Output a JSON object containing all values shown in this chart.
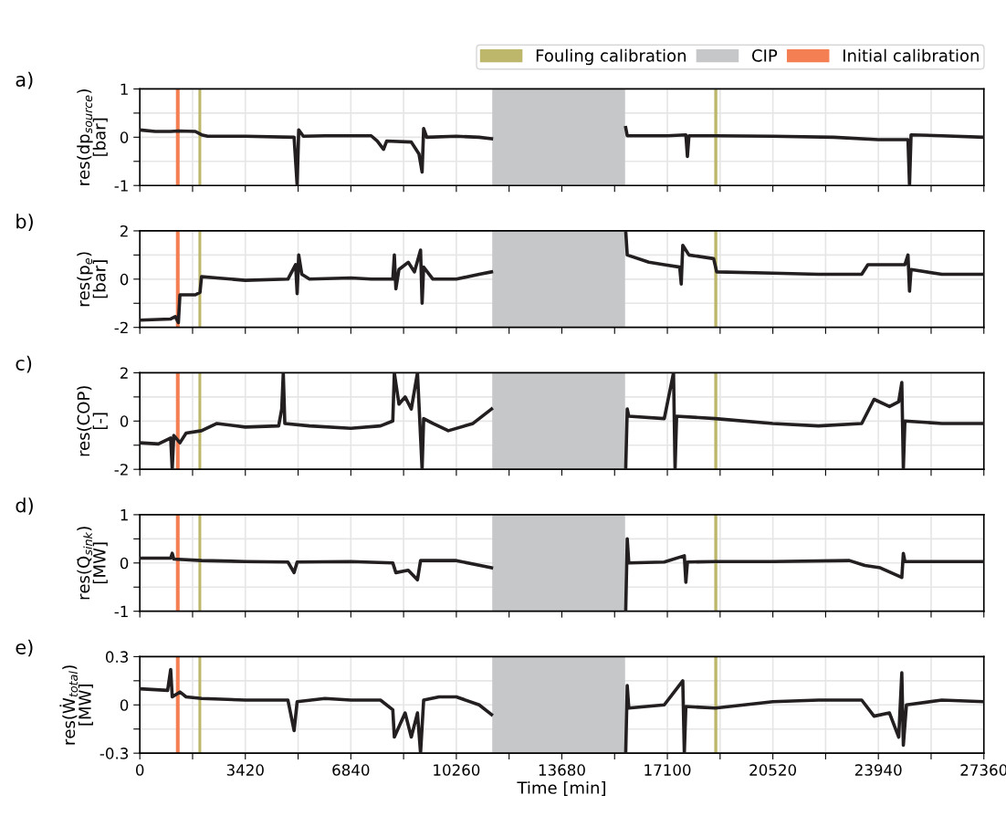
{
  "chart_data": [
    {
      "type": "line",
      "title": "a)",
      "ylabel": "res(dp$_{source}$)\n[bar]",
      "xlim": [
        0,
        27360
      ],
      "ylim": [
        -1,
        1
      ],
      "yticks": [
        -1,
        {
          "value": -0.5,
          "label": null
        },
        0,
        {
          "value": 0.5,
          "label": null
        },
        1
      ],
      "xticks": [
        0,
        {
          "value": 1710,
          "label": null
        },
        3420,
        {
          "value": 5130,
          "label": null
        },
        6840,
        {
          "value": 8550,
          "label": null
        },
        10260,
        {
          "value": 11970,
          "label": null
        },
        13680,
        {
          "value": 15390,
          "label": null
        },
        17100,
        {
          "value": 18810,
          "label": null
        },
        20520,
        {
          "value": 22230,
          "label": null
        },
        23940,
        {
          "value": 25650,
          "label": null
        },
        27360
      ],
      "tick_labels": "y",
      "grid": true,
      "legend": "top right",
      "bands": [
        {
          "axis": "x",
          "from": 1900,
          "to": 1990,
          "label": "Fouling calibration",
          "color": "#bdb76b"
        },
        {
          "axis": "x",
          "from": 11424,
          "to": 15730,
          "label": "CIP",
          "color": "#c6c7c9"
        },
        {
          "axis": "x",
          "from": 1170,
          "to": 1290,
          "label": "Initial calibration",
          "color": "#f47f52"
        },
        {
          "axis": "x",
          "from": 18620,
          "to": 18720,
          "color": "#bdb76b"
        }
      ],
      "series": [
        {
          "color": "#231f20",
          "x": [
            0,
            500,
            1000,
            1250,
            1800,
            2000,
            2200,
            3420,
            5000,
            5100,
            5150,
            5300,
            6000,
            7500,
            7700,
            7900,
            8000,
            8800,
            9050,
            9150,
            9200,
            9300,
            10260,
            11000,
            11400,
            13680,
            15750,
            15800,
            17100,
            17700,
            17750,
            17800,
            18660,
            20520,
            22500,
            23940,
            24900,
            24950,
            25000,
            26000,
            27360
          ],
          "values": [
            0.15,
            0.12,
            0.12,
            0.13,
            0.12,
            0.05,
            0.02,
            0.02,
            0.0,
            -1.0,
            0.15,
            0.02,
            0.03,
            0.03,
            -0.08,
            -0.25,
            -0.08,
            -0.1,
            -0.35,
            -0.72,
            0.18,
            0.0,
            0.02,
            0.0,
            -0.03,
            null,
            0.2,
            0.03,
            0.03,
            0.05,
            -0.4,
            0.03,
            0.03,
            0.02,
            0.0,
            -0.05,
            -0.05,
            -1.0,
            0.05,
            0.03,
            0.0
          ]
        }
      ]
    },
    {
      "type": "line",
      "title": "b)",
      "ylabel": "res(p$_{e}$)\n[bar]",
      "xlim": [
        0,
        27360
      ],
      "ylim": [
        -2,
        2
      ],
      "yticks": [
        -2,
        {
          "value": -1,
          "label": null
        },
        0,
        {
          "value": 1,
          "label": null
        },
        2
      ],
      "xticks": [
        0,
        {
          "value": 1710,
          "label": null
        },
        3420,
        {
          "value": 5130,
          "label": null
        },
        6840,
        {
          "value": 8550,
          "label": null
        },
        10260,
        {
          "value": 11970,
          "label": null
        },
        13680,
        {
          "value": 15390,
          "label": null
        },
        17100,
        {
          "value": 18810,
          "label": null
        },
        20520,
        {
          "value": 22230,
          "label": null
        },
        23940,
        {
          "value": 25650,
          "label": null
        },
        27360
      ],
      "tick_labels": "y",
      "grid": true,
      "bands": [
        {
          "axis": "x",
          "from": 1900,
          "to": 1990,
          "color": "#bdb76b"
        },
        {
          "axis": "x",
          "from": 11424,
          "to": 15730,
          "color": "#c6c7c9"
        },
        {
          "axis": "x",
          "from": 1170,
          "to": 1290,
          "color": "#f47f52"
        },
        {
          "axis": "x",
          "from": 18620,
          "to": 18720,
          "color": "#bdb76b"
        }
      ],
      "series": [
        {
          "color": "#231f20",
          "x": [
            0,
            1000,
            1150,
            1250,
            1300,
            1800,
            1950,
            2000,
            2500,
            3420,
            4800,
            5050,
            5100,
            5150,
            5250,
            5500,
            6840,
            7500,
            8200,
            8250,
            8300,
            8400,
            8700,
            8900,
            9100,
            9150,
            9200,
            9500,
            10260,
            11000,
            11400,
            13680,
            15750,
            15800,
            16500,
            17000,
            17500,
            17550,
            17600,
            17800,
            18600,
            18700,
            20520,
            22000,
            23400,
            23600,
            24800,
            24900,
            24950,
            25000,
            26000,
            27360
          ],
          "values": [
            -1.7,
            -1.65,
            -1.55,
            -1.8,
            -0.65,
            -0.65,
            -0.55,
            0.1,
            0.05,
            -0.05,
            0.0,
            0.6,
            -0.6,
            1.0,
            0.2,
            0.0,
            0.05,
            0.0,
            0.0,
            1.0,
            -0.4,
            0.4,
            0.7,
            0.3,
            1.2,
            -1.0,
            0.5,
            0.0,
            0.0,
            0.2,
            0.3,
            null,
            2.0,
            1.0,
            0.7,
            0.6,
            0.5,
            -0.2,
            1.4,
            1.0,
            0.85,
            0.3,
            0.25,
            0.2,
            0.2,
            0.6,
            0.6,
            1.0,
            -0.5,
            0.4,
            0.2,
            0.2
          ]
        }
      ]
    },
    {
      "type": "line",
      "title": "c)",
      "ylabel": "res(COP)\n[-]",
      "xlim": [
        0,
        27360
      ],
      "ylim": [
        -2,
        2
      ],
      "yticks": [
        -2,
        {
          "value": -1,
          "label": null
        },
        0,
        {
          "value": 1,
          "label": null
        },
        2
      ],
      "xticks": [
        0,
        {
          "value": 1710,
          "label": null
        },
        3420,
        {
          "value": 5130,
          "label": null
        },
        6840,
        {
          "value": 8550,
          "label": null
        },
        10260,
        {
          "value": 11970,
          "label": null
        },
        13680,
        {
          "value": 15390,
          "label": null
        },
        17100,
        {
          "value": 18810,
          "label": null
        },
        20520,
        {
          "value": 22230,
          "label": null
        },
        23940,
        {
          "value": 25650,
          "label": null
        },
        27360
      ],
      "tick_labels": "y",
      "grid": true,
      "bands": [
        {
          "axis": "x",
          "from": 1900,
          "to": 1990,
          "color": "#bdb76b"
        },
        {
          "axis": "x",
          "from": 11424,
          "to": 15730,
          "color": "#c6c7c9"
        },
        {
          "axis": "x",
          "from": 1170,
          "to": 1290,
          "color": "#f47f52"
        },
        {
          "axis": "x",
          "from": 18620,
          "to": 18720,
          "color": "#bdb76b"
        }
      ],
      "series": [
        {
          "color": "#231f20",
          "x": [
            0,
            600,
            1000,
            1050,
            1100,
            1300,
            1500,
            2000,
            2500,
            3420,
            4500,
            4600,
            4650,
            4700,
            5500,
            6840,
            7800,
            8200,
            8250,
            8400,
            8600,
            8800,
            9000,
            9150,
            9200,
            9500,
            10000,
            10800,
            11400,
            13680,
            15750,
            15800,
            15850,
            17000,
            17300,
            17350,
            17400,
            18660,
            20520,
            22000,
            23400,
            23800,
            24300,
            24600,
            24700,
            24750,
            24800,
            26000,
            27360
          ],
          "values": [
            -0.9,
            -0.95,
            -0.7,
            -2.0,
            -0.6,
            -0.9,
            -0.5,
            -0.4,
            -0.1,
            -0.25,
            -0.2,
            0.5,
            2.0,
            -0.1,
            -0.2,
            -0.3,
            -0.2,
            0.0,
            2.0,
            0.7,
            1.0,
            0.5,
            2.0,
            -2.0,
            0.1,
            -0.1,
            -0.4,
            -0.1,
            0.5,
            null,
            -2.0,
            0.5,
            0.2,
            0.1,
            2.0,
            -2.0,
            0.2,
            0.1,
            -0.1,
            -0.2,
            -0.1,
            0.9,
            0.6,
            0.8,
            1.6,
            -2.0,
            0.0,
            -0.1,
            -0.1
          ]
        }
      ]
    },
    {
      "type": "line",
      "title": "d)",
      "ylabel": "res(Q̇$_{sink}$)\n[MW]",
      "xlim": [
        0,
        27360
      ],
      "ylim": [
        -1,
        1
      ],
      "yticks": [
        -1,
        {
          "value": -0.5,
          "label": null
        },
        0,
        {
          "value": 0.5,
          "label": null
        },
        1
      ],
      "xticks": [
        0,
        {
          "value": 1710,
          "label": null
        },
        3420,
        {
          "value": 5130,
          "label": null
        },
        6840,
        {
          "value": 8550,
          "label": null
        },
        10260,
        {
          "value": 11970,
          "label": null
        },
        13680,
        {
          "value": 15390,
          "label": null
        },
        17100,
        {
          "value": 18810,
          "label": null
        },
        20520,
        {
          "value": 22230,
          "label": null
        },
        23940,
        {
          "value": 25650,
          "label": null
        },
        27360
      ],
      "tick_labels": "y",
      "grid": true,
      "bands": [
        {
          "axis": "x",
          "from": 1900,
          "to": 1990,
          "color": "#bdb76b"
        },
        {
          "axis": "x",
          "from": 11424,
          "to": 15730,
          "color": "#c6c7c9"
        },
        {
          "axis": "x",
          "from": 1170,
          "to": 1290,
          "color": "#f47f52"
        },
        {
          "axis": "x",
          "from": 18620,
          "to": 18720,
          "color": "#bdb76b"
        }
      ],
      "series": [
        {
          "color": "#231f20",
          "x": [
            0,
            1000,
            1050,
            1100,
            2000,
            3420,
            4800,
            5000,
            5100,
            6840,
            8200,
            8300,
            8700,
            9000,
            9100,
            10260,
            11400,
            13680,
            15750,
            15800,
            15850,
            17000,
            17650,
            17700,
            17750,
            18660,
            20520,
            23000,
            23500,
            24000,
            24700,
            24750,
            24800,
            27360
          ],
          "values": [
            0.1,
            0.1,
            0.2,
            0.08,
            0.05,
            0.03,
            0.02,
            -0.2,
            0.02,
            0.03,
            0.0,
            -0.2,
            -0.15,
            -0.35,
            0.05,
            0.05,
            -0.1,
            null,
            -1.0,
            0.5,
            0.0,
            0.02,
            0.15,
            -0.4,
            0.02,
            0.03,
            0.03,
            0.05,
            -0.05,
            -0.1,
            -0.3,
            0.2,
            0.03,
            0.03
          ]
        }
      ]
    },
    {
      "type": "line",
      "title": "e)",
      "ylabel": "res(Ẇ$_{total}$)\n[MW]",
      "xlabel": "Time [min]",
      "xlim": [
        0,
        27360
      ],
      "ylim": [
        -0.3,
        0.3
      ],
      "yticks": [
        -0.3,
        {
          "value": -0.15,
          "label": null
        },
        0,
        {
          "value": 0.15,
          "label": null
        },
        0.3
      ],
      "xticks": [
        0,
        {
          "value": 1710,
          "label": null
        },
        3420,
        {
          "value": 5130,
          "label": null
        },
        6840,
        {
          "value": 8550,
          "label": null
        },
        10260,
        {
          "value": 11970,
          "label": null
        },
        13680,
        {
          "value": 15390,
          "label": null
        },
        17100,
        {
          "value": 18810,
          "label": null
        },
        20520,
        {
          "value": 22230,
          "label": null
        },
        23940,
        {
          "value": 25650,
          "label": null
        },
        27360
      ],
      "grid": true,
      "bands": [
        {
          "axis": "x",
          "from": 1900,
          "to": 1990,
          "color": "#bdb76b"
        },
        {
          "axis": "x",
          "from": 11424,
          "to": 15730,
          "color": "#c6c7c9"
        },
        {
          "axis": "x",
          "from": 1170,
          "to": 1290,
          "color": "#f47f52"
        },
        {
          "axis": "x",
          "from": 18620,
          "to": 18720,
          "color": "#bdb76b"
        }
      ],
      "series": [
        {
          "color": "#231f20",
          "x": [
            0,
            900,
            1000,
            1050,
            1300,
            1500,
            2000,
            3420,
            4800,
            5000,
            5100,
            6000,
            6840,
            7800,
            8200,
            8250,
            8600,
            8800,
            9000,
            9100,
            9200,
            9700,
            10260,
            11000,
            11400,
            13680,
            15750,
            15800,
            15850,
            17000,
            17600,
            17650,
            17700,
            18660,
            20520,
            22000,
            23400,
            23800,
            24300,
            24600,
            24700,
            24750,
            24850,
            26000,
            27360
          ],
          "values": [
            0.1,
            0.09,
            0.22,
            0.05,
            0.08,
            0.05,
            0.04,
            0.03,
            0.03,
            -0.16,
            0.02,
            0.04,
            0.03,
            0.03,
            -0.03,
            -0.2,
            -0.05,
            -0.2,
            -0.05,
            -0.3,
            0.03,
            0.05,
            0.05,
            0.0,
            -0.06,
            null,
            -0.3,
            0.12,
            -0.02,
            0.0,
            0.15,
            -0.3,
            -0.01,
            -0.02,
            0.02,
            0.03,
            0.03,
            -0.07,
            -0.05,
            -0.2,
            0.2,
            -0.25,
            0.0,
            0.03,
            0.02
          ]
        }
      ]
    }
  ]
}
